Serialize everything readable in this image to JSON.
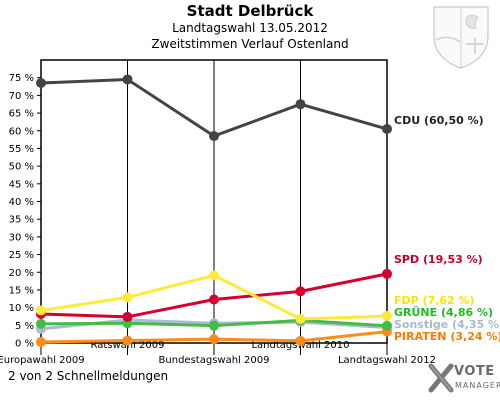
{
  "header": {
    "title": "Stadt Delbrück",
    "subtitle": "Landtagswahl 13.05.2012",
    "subtitle2": "Zweitstimmen Verlauf Ostenland"
  },
  "footer": {
    "text": "2 von 2 Schnellmeldungen"
  },
  "brand": {
    "line1": "VOTE",
    "line2": "MANAGER"
  },
  "chart_data": {
    "type": "line",
    "title": "Stadt Delbrück",
    "x": [
      "Europawahl 2009",
      "Ratswahl 2009",
      "Bundestagswahl 2009",
      "Landtagswahl 2010",
      "Landtagswahl 2012"
    ],
    "yticks": [
      "0 %",
      "5 %",
      "10 %",
      "15 %",
      "20 %",
      "25 %",
      "30 %",
      "35 %",
      "40 %",
      "45 %",
      "50 %",
      "55 %",
      "60 %",
      "65 %",
      "70 %",
      "75 %"
    ],
    "ylim": [
      0,
      80
    ],
    "grid": false,
    "series": [
      {
        "name": "CDU",
        "label": "CDU (60,50 %)",
        "color": "#444444",
        "labelColor": "#222222",
        "values": [
          73.5,
          74.5,
          58.5,
          67.5,
          60.5
        ]
      },
      {
        "name": "SPD",
        "label": "SPD (19,53 %)",
        "color": "#d40030",
        "labelColor": "#c8002a",
        "values": [
          8.2,
          7.4,
          12.3,
          14.6,
          19.53
        ]
      },
      {
        "name": "FDP",
        "label": "FDP (7,62 %)",
        "color": "#ffea3c",
        "labelColor": "#ffe200",
        "values": [
          9.2,
          12.9,
          19.1,
          6.8,
          7.62
        ]
      },
      {
        "name": "GRÜNE",
        "label": "GRÜNE (4,86 %)",
        "color": "#44bb44",
        "labelColor": "#22bb22",
        "values": [
          5.4,
          5.6,
          4.9,
          6.4,
          4.86
        ]
      },
      {
        "name": "Sonstige",
        "label": "Sonstige (4,35 %)",
        "color": "#a8bcd8",
        "labelColor": "#aab8cc",
        "values": [
          4.0,
          6.5,
          5.6,
          5.9,
          4.35
        ]
      },
      {
        "name": "PIRATEN",
        "label": "PIRATEN (3,24 %)",
        "color": "#ff8c1a",
        "labelColor": "#ff7a00",
        "values": [
          0.3,
          0.7,
          1.1,
          0.6,
          3.24
        ]
      }
    ]
  }
}
